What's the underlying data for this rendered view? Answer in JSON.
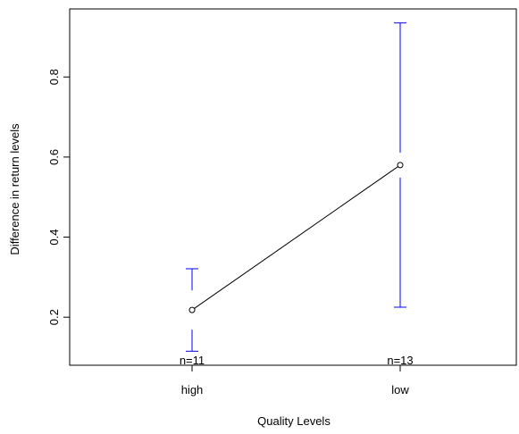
{
  "chart_data": {
    "type": "line",
    "xlabel": "Quality Levels",
    "ylabel": "Difference in return levels",
    "categories": [
      "high",
      "low"
    ],
    "ylim": [
      0.08,
      0.97
    ],
    "yticks": [
      0.2,
      0.4,
      0.6,
      0.8
    ],
    "ytick_labels": [
      "0.2",
      "0.4",
      "0.6",
      "0.8"
    ],
    "grid": false,
    "series": [
      {
        "points": [
          {
            "x": "high",
            "mean": 0.218,
            "lower": 0.115,
            "upper": 0.321,
            "n_label": "n=11"
          },
          {
            "x": "low",
            "mean": 0.58,
            "lower": 0.225,
            "upper": 0.935,
            "n_label": "n=13"
          }
        ]
      }
    ],
    "colors": {
      "error_bars": "#0000ff",
      "line": "#000000",
      "axes": "#000000"
    }
  }
}
